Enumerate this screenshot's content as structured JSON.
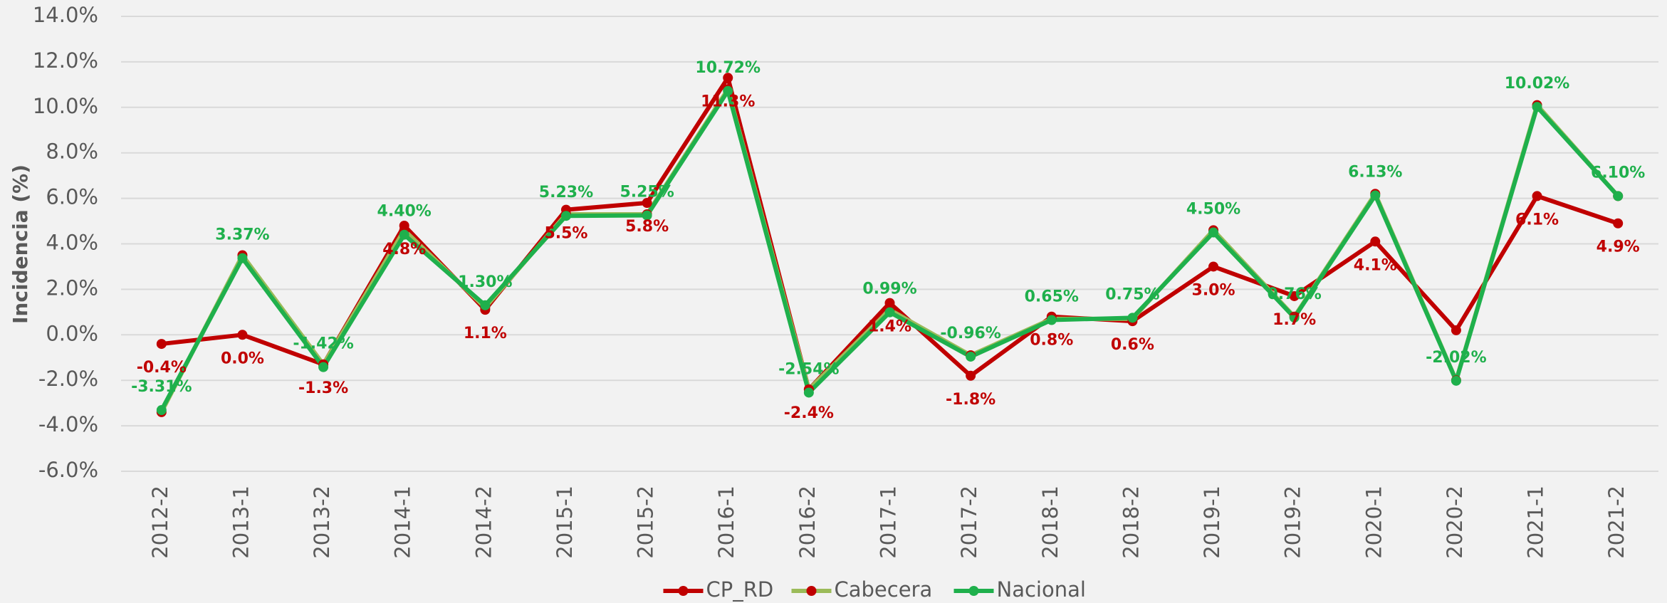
{
  "chart_data": {
    "type": "line",
    "y_label": "Incidencia (%)",
    "categories": [
      "2012-2",
      "2013-1",
      "2013-2",
      "2014-1",
      "2014-2",
      "2015-1",
      "2015-2",
      "2016-1",
      "2016-2",
      "2017-1",
      "2017-2",
      "2018-1",
      "2018-2",
      "2019-1",
      "2019-2",
      "2020-1",
      "2020-2",
      "2021-1",
      "2021-2"
    ],
    "series": [
      {
        "name": "CP_RD",
        "color": "#c00000",
        "marker_color": "#c00000",
        "values": [
          -0.4,
          0.0,
          -1.3,
          4.8,
          1.1,
          5.5,
          5.8,
          11.3,
          -2.4,
          1.4,
          -1.8,
          0.8,
          0.6,
          3.0,
          1.7,
          4.1,
          0.2,
          6.1,
          4.9
        ],
        "value_labels": [
          "-0.4%",
          "0.0%",
          "-1.3%",
          "4.8%",
          "1.1%",
          "5.5%",
          "5.8%",
          "11.3%",
          "-2.4%",
          "1.4%",
          "-1.8%",
          "0.8%",
          "0.6%",
          "3.0%",
          "1.7%",
          "4.1%",
          null,
          "6.1%",
          "4.9%"
        ]
      },
      {
        "name": "Cabecera",
        "color": "#9bbb59",
        "marker_color": "#c00000",
        "values": [
          -3.4,
          3.5,
          -1.3,
          4.6,
          1.2,
          5.3,
          5.3,
          10.8,
          -2.4,
          1.1,
          -0.9,
          0.7,
          0.7,
          4.6,
          0.8,
          6.2,
          -2.0,
          10.1,
          6.1
        ]
      },
      {
        "name": "Nacional",
        "color": "#1fb04c",
        "marker_color": "#1fb04c",
        "values": [
          -3.31,
          3.37,
          -1.42,
          4.4,
          1.3,
          5.23,
          5.25,
          10.72,
          -2.54,
          0.99,
          -0.96,
          0.65,
          0.75,
          4.5,
          0.76,
          6.13,
          -2.02,
          10.02,
          6.1
        ],
        "value_labels": [
          "-3.31%",
          "3.37%",
          "-1.42%",
          "4.40%",
          "1.30%",
          "5.23%",
          "5.25%",
          "10.72%",
          "-2.54%",
          "0.99%",
          "-0.96%",
          "0.65%",
          "0.75%",
          "4.50%",
          "0.76%",
          "6.13%",
          "-2.02%",
          "10.02%",
          "6.10%"
        ]
      }
    ],
    "ylim": [
      -6,
      14
    ],
    "yticks": [
      {
        "value": -6,
        "label": "-6.0%"
      },
      {
        "value": -4,
        "label": "-4.0%"
      },
      {
        "value": -2,
        "label": "-2.0%"
      },
      {
        "value": 0,
        "label": "0.0%"
      },
      {
        "value": 2,
        "label": "2.0%"
      },
      {
        "value": 4,
        "label": "4.0%"
      },
      {
        "value": 6,
        "label": "6.0%"
      },
      {
        "value": 8,
        "label": "8.0%"
      },
      {
        "value": 10,
        "label": "10.0%"
      },
      {
        "value": 12,
        "label": "12.0%"
      },
      {
        "value": 14,
        "label": "14.0%"
      }
    ],
    "grid": true,
    "legend": "bottom"
  }
}
